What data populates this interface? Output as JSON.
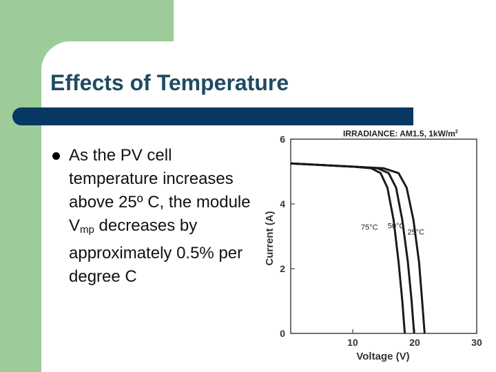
{
  "slide": {
    "title": "Effects of Temperature",
    "bullet": {
      "part1": "As the PV cell temperature increases above 25",
      "degree_symbol": "º",
      "part2": " C, the module V",
      "subscript": "mp",
      "part3": " decreases by approximately 0.5% per degree C"
    }
  },
  "colors": {
    "accent_green": "#9dcc98",
    "title_text": "#1f4b62",
    "title_bar": "#073763"
  },
  "chart_data": {
    "type": "line",
    "title": "IRRADIANCE: AM1.5, 1kW/m",
    "title_superscript": "2",
    "xlabel": "Voltage (V)",
    "ylabel": "Current (A)",
    "xlim": [
      0,
      30
    ],
    "ylim": [
      0,
      6
    ],
    "x_ticks": [
      "10",
      "20",
      "30"
    ],
    "y_ticks": [
      "0",
      "2",
      "4",
      "6"
    ],
    "grid": false,
    "series": [
      {
        "name": "75°C",
        "label_at": [
          12.7,
          3.2
        ],
        "points": [
          [
            0,
            5.25
          ],
          [
            10,
            5.15
          ],
          [
            13,
            5.1
          ],
          [
            14.5,
            4.95
          ],
          [
            15.6,
            4.5
          ],
          [
            16.6,
            3.5
          ],
          [
            17.4,
            2.2
          ],
          [
            18.0,
            1.0
          ],
          [
            18.4,
            0
          ]
        ]
      },
      {
        "name": "50°C",
        "label_at": [
          17.0,
          3.25
        ],
        "points": [
          [
            0,
            5.25
          ],
          [
            10,
            5.15
          ],
          [
            14,
            5.1
          ],
          [
            15.8,
            4.95
          ],
          [
            17.0,
            4.5
          ],
          [
            18.0,
            3.5
          ],
          [
            18.9,
            2.2
          ],
          [
            19.5,
            1.0
          ],
          [
            19.9,
            0
          ]
        ]
      },
      {
        "name": "25°C",
        "label_at": [
          20.2,
          3.05
        ],
        "points": [
          [
            0,
            5.25
          ],
          [
            10,
            5.15
          ],
          [
            15,
            5.1
          ],
          [
            17.4,
            4.95
          ],
          [
            18.7,
            4.5
          ],
          [
            19.8,
            3.5
          ],
          [
            20.7,
            2.2
          ],
          [
            21.2,
            1.0
          ],
          [
            21.6,
            0
          ]
        ]
      }
    ]
  }
}
